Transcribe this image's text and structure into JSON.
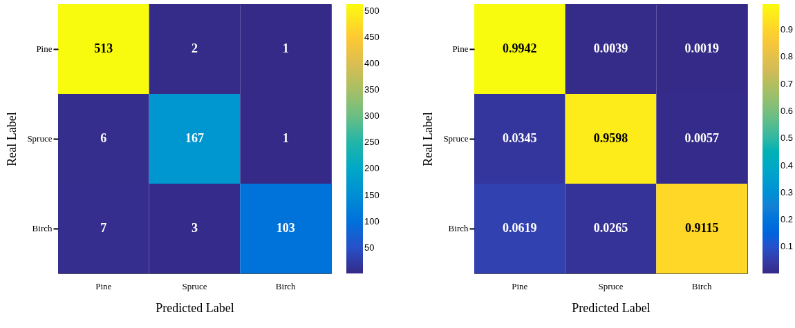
{
  "chart_data": [
    {
      "type": "heatmap",
      "xlabel": "Predicted Label",
      "ylabel": "Real Label",
      "categories": [
        "Pine",
        "Spruce",
        "Birch"
      ],
      "y_categories": [
        "Pine",
        "Spruce",
        "Birch"
      ],
      "cells": [
        [
          513,
          2,
          1
        ],
        [
          6,
          167,
          1
        ],
        [
          7,
          3,
          103
        ]
      ],
      "clim": [
        1,
        513
      ],
      "cticks": [
        50,
        100,
        150,
        200,
        250,
        300,
        350,
        400,
        450,
        500
      ],
      "data_labels": true
    },
    {
      "type": "heatmap",
      "xlabel": "Predicted Label",
      "ylabel": "Real Label",
      "categories": [
        "Pine",
        "Spruce",
        "Birch"
      ],
      "y_categories": [
        "Pine",
        "Spruce",
        "Birch"
      ],
      "cells": [
        [
          0.9942,
          0.0039,
          0.0019
        ],
        [
          0.0345,
          0.9598,
          0.0057
        ],
        [
          0.0619,
          0.0265,
          0.9115
        ]
      ],
      "clim": [
        0.0019,
        0.9942
      ],
      "cticks": [
        0.1,
        0.2,
        0.3,
        0.4,
        0.5,
        0.6,
        0.7,
        0.8,
        0.9
      ],
      "data_labels": true
    }
  ]
}
